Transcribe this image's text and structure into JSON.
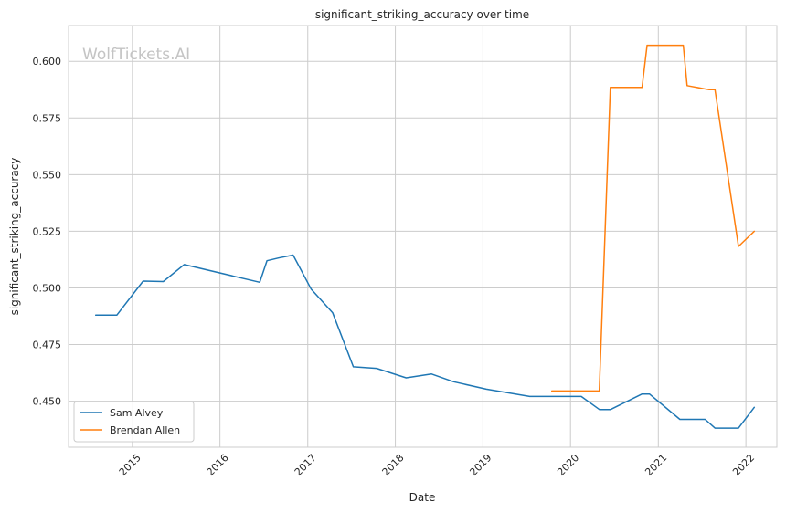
{
  "chart_data": {
    "type": "line",
    "title": "significant_striking_accuracy over time",
    "xlabel": "Date",
    "ylabel": "significant_striking_accuracy",
    "watermark": "WolfTickets.AI",
    "xlim": [
      "2014-04-10",
      "2022-05-10"
    ],
    "ylim": [
      0.4297,
      0.6158
    ],
    "x_ticks": [
      "2015",
      "2016",
      "2017",
      "2018",
      "2019",
      "2020",
      "2021",
      "2022"
    ],
    "y_ticks": [
      "0.450",
      "0.475",
      "0.500",
      "0.525",
      "0.550",
      "0.575",
      "0.600"
    ],
    "y_tick_values": [
      0.45,
      0.475,
      0.5,
      0.525,
      0.55,
      0.575,
      0.6
    ],
    "grid": true,
    "legend_position": "lower-left",
    "series": [
      {
        "name": "Sam Alvey",
        "color": "#1f77b4",
        "points": [
          [
            "2014-08-01",
            0.488
          ],
          [
            "2014-10-28",
            0.488
          ],
          [
            "2015-02-15",
            0.503
          ],
          [
            "2015-05-10",
            0.5028
          ],
          [
            "2015-08-05",
            0.5103
          ],
          [
            "2016-06-15",
            0.5025
          ],
          [
            "2016-07-15",
            0.512
          ],
          [
            "2016-09-01",
            0.5132
          ],
          [
            "2016-11-01",
            0.5145
          ],
          [
            "2017-01-15",
            0.4995
          ],
          [
            "2017-04-15",
            0.489
          ],
          [
            "2017-07-10",
            0.4652
          ],
          [
            "2017-10-15",
            0.4645
          ],
          [
            "2018-02-15",
            0.4603
          ],
          [
            "2018-06-01",
            0.462
          ],
          [
            "2018-09-01",
            0.4586
          ],
          [
            "2019-01-15",
            0.4553
          ],
          [
            "2019-07-15",
            0.4521
          ],
          [
            "2020-01-01",
            0.4521
          ],
          [
            "2020-02-15",
            0.4521
          ],
          [
            "2020-05-01",
            0.4463
          ],
          [
            "2020-06-15",
            0.4463
          ],
          [
            "2020-10-25",
            0.4532
          ],
          [
            "2020-11-25",
            0.4532
          ],
          [
            "2021-04-01",
            0.442
          ],
          [
            "2021-07-15",
            0.442
          ],
          [
            "2021-08-25",
            0.4381
          ],
          [
            "2021-12-01",
            0.4381
          ],
          [
            "2022-02-05",
            0.4473
          ]
        ]
      },
      {
        "name": "Brendan Allen",
        "color": "#ff7f0e",
        "points": [
          [
            "2019-10-15",
            0.4545
          ],
          [
            "2020-04-30",
            0.4545
          ],
          [
            "2020-06-15",
            0.5885
          ],
          [
            "2020-10-25",
            0.5885
          ],
          [
            "2020-11-15",
            0.6071
          ],
          [
            "2021-04-15",
            0.6071
          ],
          [
            "2021-05-01",
            0.5893
          ],
          [
            "2021-08-01",
            0.5875
          ],
          [
            "2021-08-25",
            0.5875
          ],
          [
            "2021-12-01",
            0.5183
          ],
          [
            "2022-02-05",
            0.525
          ]
        ]
      }
    ]
  }
}
